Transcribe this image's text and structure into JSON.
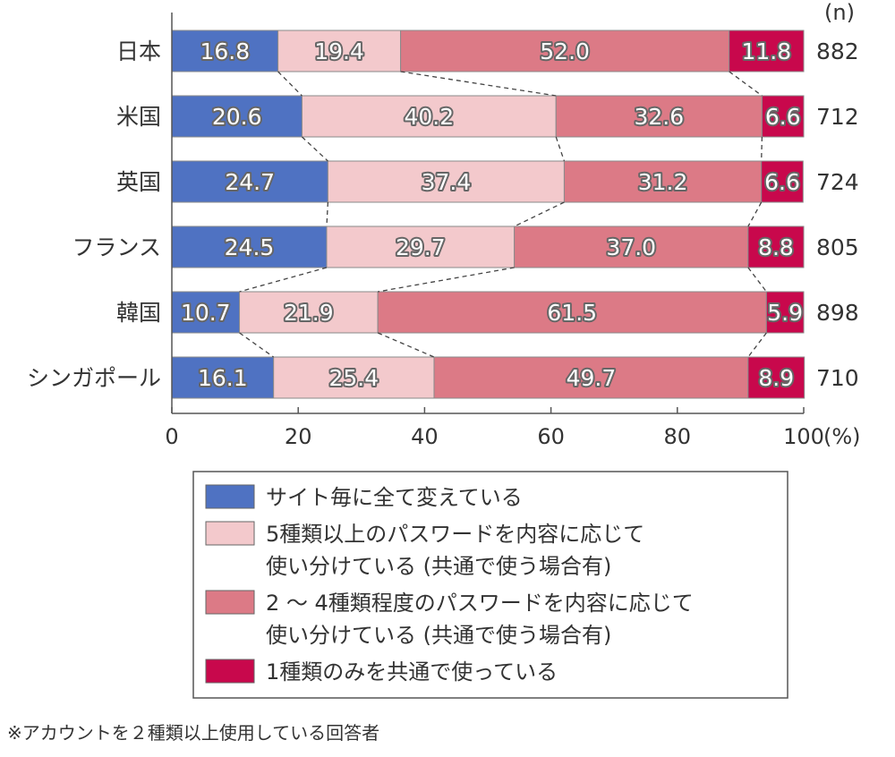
{
  "chart_data": {
    "type": "bar",
    "orientation": "horizontal",
    "stacked": true,
    "categories": [
      "日本",
      "米国",
      "英国",
      "フランス",
      "韓国",
      "シンガポール"
    ],
    "series": [
      {
        "name": "サイト毎に全て変えている",
        "values": [
          16.8,
          20.6,
          24.7,
          24.5,
          10.7,
          16.1
        ]
      },
      {
        "name": "5種類以上のパスワードを内容に応じて使い分けている（共通で使う場合有）",
        "values": [
          19.4,
          40.2,
          37.4,
          29.7,
          21.9,
          25.4
        ]
      },
      {
        "name": "2～4種類程度のパスワードを内容に応じて使い分けている（共通で使う場合有）",
        "values": [
          52.0,
          32.6,
          31.2,
          37.0,
          61.5,
          49.7
        ]
      },
      {
        "name": "1種類のみを共通で使っている",
        "values": [
          11.8,
          6.6,
          6.6,
          8.8,
          5.9,
          8.9
        ]
      }
    ],
    "n_header": "(n)",
    "n_values": [
      882,
      712,
      724,
      805,
      898,
      710
    ],
    "x_ticks": [
      0,
      20,
      40,
      60,
      80,
      100
    ],
    "x_unit": "(%)",
    "xlim": [
      0,
      100
    ],
    "grid": false,
    "connector_lines": true,
    "legend_position": "bottom",
    "legend_lines": [
      [
        "サイト毎に全て変えている"
      ],
      [
        "5種類以上のパスワードを内容に応じて",
        "使い分けている (共通で使う場合有)"
      ],
      [
        "2 ～ 4種類程度のパスワードを内容に応じて",
        "使い分けている (共通で使う場合有)"
      ],
      [
        "1種類のみを共通で使っている"
      ]
    ],
    "colors": [
      "#4f72c2",
      "#f3c9cc",
      "#dc7a86",
      "#c8084c"
    ]
  },
  "footnote": "※アカウントを２種類以上使用している回答者"
}
